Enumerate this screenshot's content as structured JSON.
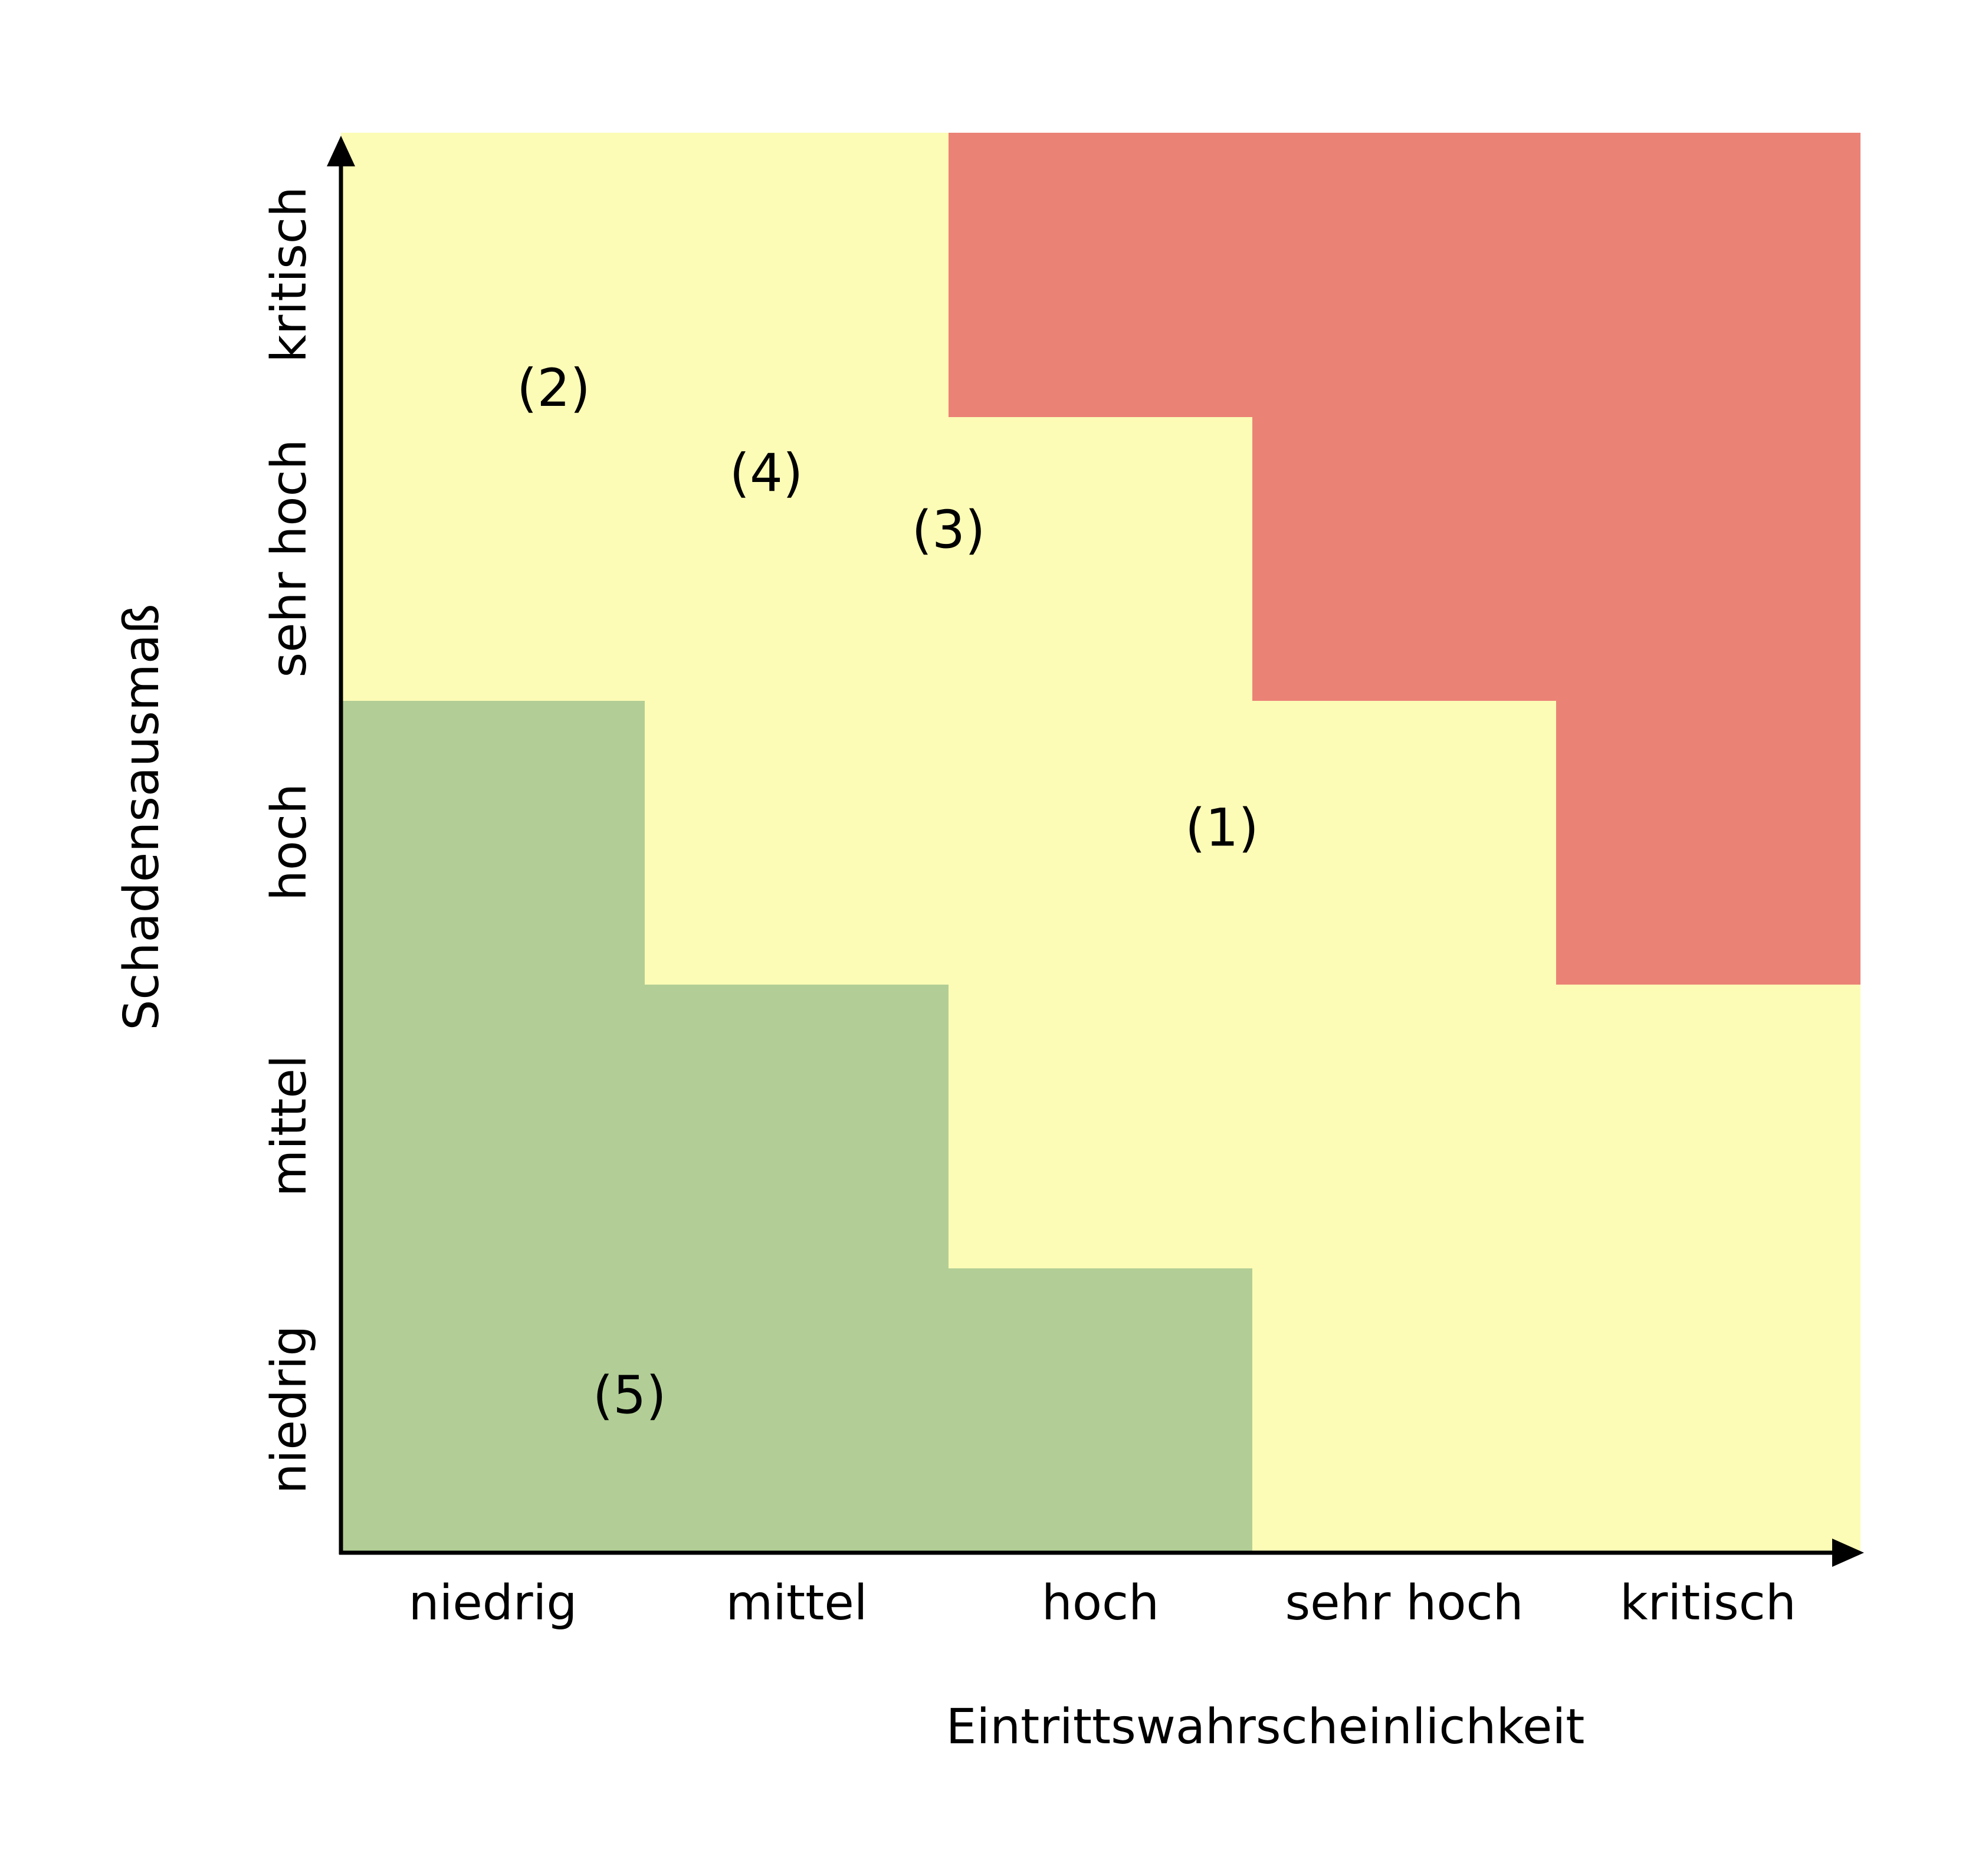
{
  "chart_data": {
    "type": "heatmap",
    "title": "",
    "xlabel": "Eintrittswahrscheinlichkeit",
    "ylabel": "Schadensausmaß",
    "x_categories": [
      "niedrig",
      "mittel",
      "hoch",
      "sehr hoch",
      "kritisch"
    ],
    "y_categories": [
      "niedrig",
      "mittel",
      "hoch",
      "sehr hoch",
      "kritisch"
    ],
    "zone_colors": {
      "low": "#b2ce96",
      "medium": "#fcfcb6",
      "high": "#eb8276"
    },
    "cells": [
      [
        "low",
        "low",
        "low",
        "medium",
        "medium"
      ],
      [
        "low",
        "low",
        "medium",
        "medium",
        "medium"
      ],
      [
        "low",
        "medium",
        "medium",
        "medium",
        "high"
      ],
      [
        "medium",
        "medium",
        "medium",
        "high",
        "high"
      ],
      [
        "medium",
        "medium",
        "high",
        "high",
        "high"
      ]
    ],
    "markers": [
      {
        "label": "(1)",
        "x": 3.4,
        "y": 3.05
      },
      {
        "label": "(2)",
        "x": 1.2,
        "y": 4.6
      },
      {
        "label": "(3)",
        "x": 2.5,
        "y": 4.1
      },
      {
        "label": "(4)",
        "x": 1.9,
        "y": 4.3
      },
      {
        "label": "(5)",
        "x": 1.45,
        "y": 1.05
      }
    ],
    "axis_color": "#000000"
  }
}
